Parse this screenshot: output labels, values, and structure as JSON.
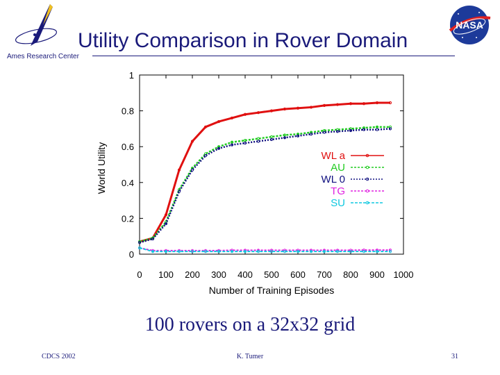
{
  "header": {
    "title": "Utility Comparison in Rover Domain",
    "ames_label": "Ames Research Center",
    "nasa_logo_text": "NASA"
  },
  "caption": "100 rovers on a 32x32 grid",
  "footer": {
    "left": "CDCS 2002",
    "center": "K. Tumer",
    "right": "31"
  },
  "colors": {
    "title": "#1a1a7a",
    "wla": "#e01010",
    "au": "#22cc22",
    "wl0": "#101080",
    "tg": "#e020e0",
    "su": "#10c8e0"
  },
  "chart_data": {
    "type": "line",
    "title": "",
    "xlabel": "Number of Training Episodes",
    "ylabel": "World Utility",
    "xlim": [
      0,
      1000
    ],
    "ylim": [
      0,
      1
    ],
    "xticks": [
      0,
      100,
      200,
      300,
      400,
      500,
      600,
      700,
      800,
      900,
      1000
    ],
    "yticks": [
      0,
      0.2,
      0.4,
      0.6,
      0.8,
      1
    ],
    "grid": false,
    "legend_position": "right",
    "x": [
      0,
      50,
      100,
      150,
      200,
      250,
      300,
      350,
      400,
      450,
      500,
      550,
      600,
      650,
      700,
      750,
      800,
      850,
      900,
      950
    ],
    "series": [
      {
        "name": "WL a",
        "color_key": "wla",
        "values": [
          0.07,
          0.09,
          0.22,
          0.47,
          0.63,
          0.71,
          0.74,
          0.76,
          0.78,
          0.79,
          0.8,
          0.81,
          0.815,
          0.82,
          0.83,
          0.835,
          0.84,
          0.84,
          0.845,
          0.845
        ]
      },
      {
        "name": "AU",
        "color_key": "au",
        "values": [
          0.07,
          0.09,
          0.18,
          0.36,
          0.48,
          0.56,
          0.6,
          0.625,
          0.635,
          0.645,
          0.655,
          0.665,
          0.67,
          0.68,
          0.69,
          0.695,
          0.7,
          0.705,
          0.71,
          0.71
        ]
      },
      {
        "name": "WL 0",
        "color_key": "wl0",
        "values": [
          0.065,
          0.085,
          0.17,
          0.35,
          0.47,
          0.55,
          0.59,
          0.61,
          0.62,
          0.63,
          0.64,
          0.65,
          0.66,
          0.67,
          0.68,
          0.685,
          0.69,
          0.695,
          0.695,
          0.7
        ]
      },
      {
        "name": "TG",
        "color_key": "tg",
        "values": [
          0.035,
          0.02,
          0.02,
          0.02,
          0.02,
          0.02,
          0.02,
          0.022,
          0.022,
          0.022,
          0.022,
          0.022,
          0.022,
          0.022,
          0.022,
          0.022,
          0.022,
          0.023,
          0.023,
          0.023
        ]
      },
      {
        "name": "SU",
        "color_key": "su",
        "values": [
          0.035,
          0.015,
          0.015,
          0.015,
          0.015,
          0.015,
          0.015,
          0.015,
          0.015,
          0.015,
          0.015,
          0.015,
          0.015,
          0.015,
          0.015,
          0.015,
          0.015,
          0.015,
          0.015,
          0.015
        ]
      }
    ]
  }
}
